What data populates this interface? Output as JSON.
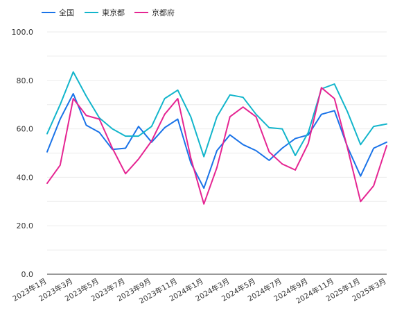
{
  "chart_data": {
    "type": "line",
    "x": [
      "2023年1月",
      "2023年2月",
      "2023年3月",
      "2023年4月",
      "2023年5月",
      "2023年6月",
      "2023年7月",
      "2023年8月",
      "2023年9月",
      "2023年10月",
      "2023年11月",
      "2023年12月",
      "2024年1月",
      "2024年2月",
      "2024年3月",
      "2024年4月",
      "2024年5月",
      "2024年6月",
      "2024年7月",
      "2024年8月",
      "2024年9月",
      "2024年10月",
      "2024年11月",
      "2024年12月",
      "2025年1月",
      "2025年2月",
      "2025年3月"
    ],
    "x_tick_labels": [
      "2023年1月",
      "2023年3月",
      "2023年5月",
      "2023年7月",
      "2023年9月",
      "2023年11月",
      "2024年1月",
      "2024年3月",
      "2024年5月",
      "2024年7月",
      "2024年9月",
      "2024年11月",
      "2025年1月",
      "2025年3月"
    ],
    "y_tick_labels": [
      "0.0",
      "20.0",
      "40.0",
      "60.0",
      "80.0",
      "100.0"
    ],
    "ylim": [
      0,
      100
    ],
    "grid": true,
    "legend_position": "top-left",
    "series": [
      {
        "name": "全国",
        "color": "#1a73e8",
        "values": [
          50.5,
          64.0,
          74.5,
          61.5,
          58.5,
          51.5,
          52.0,
          61.0,
          54.5,
          60.5,
          64.0,
          46.0,
          35.5,
          51.0,
          57.5,
          53.5,
          51.0,
          47.0,
          52.0,
          56.0,
          57.5,
          66.0,
          67.5,
          52.5,
          40.5,
          52.0,
          54.5
        ]
      },
      {
        "name": "東京都",
        "color": "#12b5cb",
        "values": [
          58.0,
          70.0,
          83.5,
          73.5,
          64.5,
          60.0,
          57.0,
          57.0,
          61.0,
          72.5,
          76.0,
          65.0,
          48.5,
          65.0,
          74.0,
          73.0,
          66.0,
          60.5,
          60.0,
          49.0,
          58.5,
          76.5,
          78.5,
          67.0,
          53.5,
          61.0,
          62.0
        ]
      },
      {
        "name": "京都府",
        "color": "#e52592",
        "values": [
          37.5,
          45.0,
          72.5,
          65.5,
          64.0,
          52.0,
          41.5,
          47.5,
          55.0,
          66.0,
          72.5,
          48.0,
          29.0,
          44.0,
          65.0,
          69.0,
          65.0,
          50.5,
          45.5,
          43.0,
          54.0,
          77.0,
          72.5,
          52.0,
          30.0,
          36.5,
          53.0
        ]
      }
    ]
  }
}
